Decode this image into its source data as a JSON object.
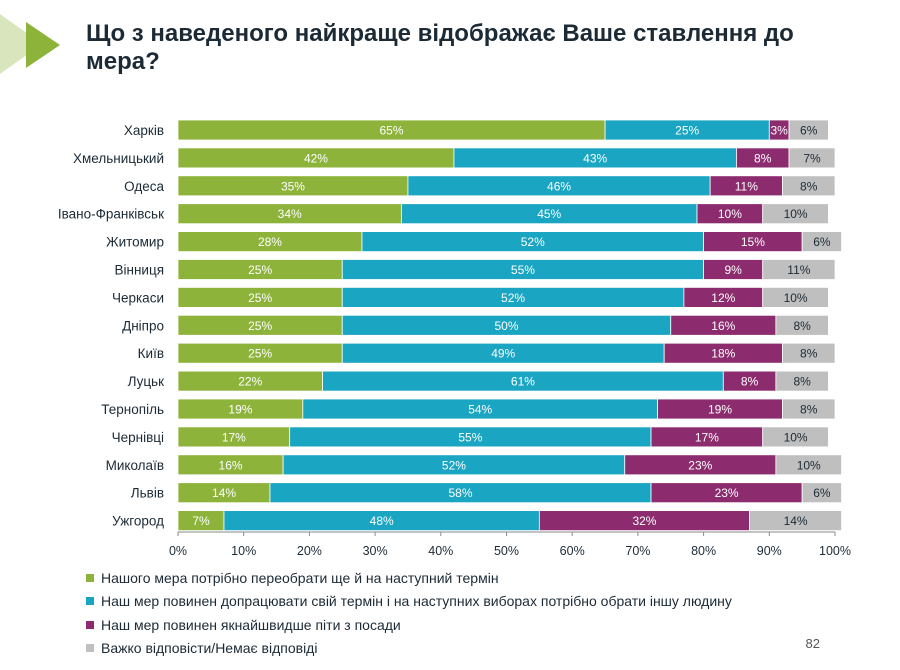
{
  "slide": {
    "title": "Що з наведеного найкраще відображає Ваше ставлення до мера?",
    "page_number": "82",
    "colors": {
      "accent_triangle": "#8db33a",
      "accent_triangle_shadow": "#d9e6bd"
    }
  },
  "chart_data": {
    "type": "bar",
    "orientation": "horizontal",
    "stacked": true,
    "title": "Що з наведеного найкраще відображає Ваше ставлення до мера?",
    "categories": [
      "Харків",
      "Хмельницький",
      "Одеса",
      "Івано-Франківськ",
      "Житомир",
      "Вінниця",
      "Черкаси",
      "Дніпро",
      "Київ",
      "Луцьк",
      "Тернопіль",
      "Чернівці",
      "Миколаїв",
      "Львів",
      "Ужгород"
    ],
    "series": [
      {
        "name": "Нашого мера потрібно переобрати ще й на наступний термін",
        "color": "#8db33a",
        "values": [
          65,
          42,
          35,
          34,
          28,
          25,
          25,
          25,
          25,
          22,
          19,
          17,
          16,
          14,
          7
        ]
      },
      {
        "name": "Наш мер повинен допрацювати свій термін і на наступних виборах потрібно обрати іншу людину",
        "color": "#1aa5c2",
        "values": [
          25,
          43,
          46,
          45,
          52,
          55,
          52,
          50,
          49,
          61,
          54,
          55,
          52,
          58,
          48
        ]
      },
      {
        "name": "Наш мер повинен якнайшвидше піти з посади",
        "color": "#8c2c6e",
        "values": [
          3,
          8,
          11,
          10,
          15,
          9,
          12,
          16,
          18,
          8,
          19,
          17,
          23,
          23,
          32
        ]
      },
      {
        "name": "Важко відповісти/Немає відповіді",
        "color": "#bfbfbf",
        "values": [
          6,
          7,
          8,
          10,
          6,
          11,
          10,
          8,
          8,
          8,
          8,
          10,
          10,
          6,
          14
        ]
      }
    ],
    "value_format": "{v}%",
    "xlim": [
      0,
      100
    ],
    "x_ticks": [
      "0%",
      "10%",
      "20%",
      "30%",
      "40%",
      "50%",
      "60%",
      "70%",
      "80%",
      "90%",
      "100%"
    ],
    "grid": false,
    "legend_position": "bottom"
  }
}
